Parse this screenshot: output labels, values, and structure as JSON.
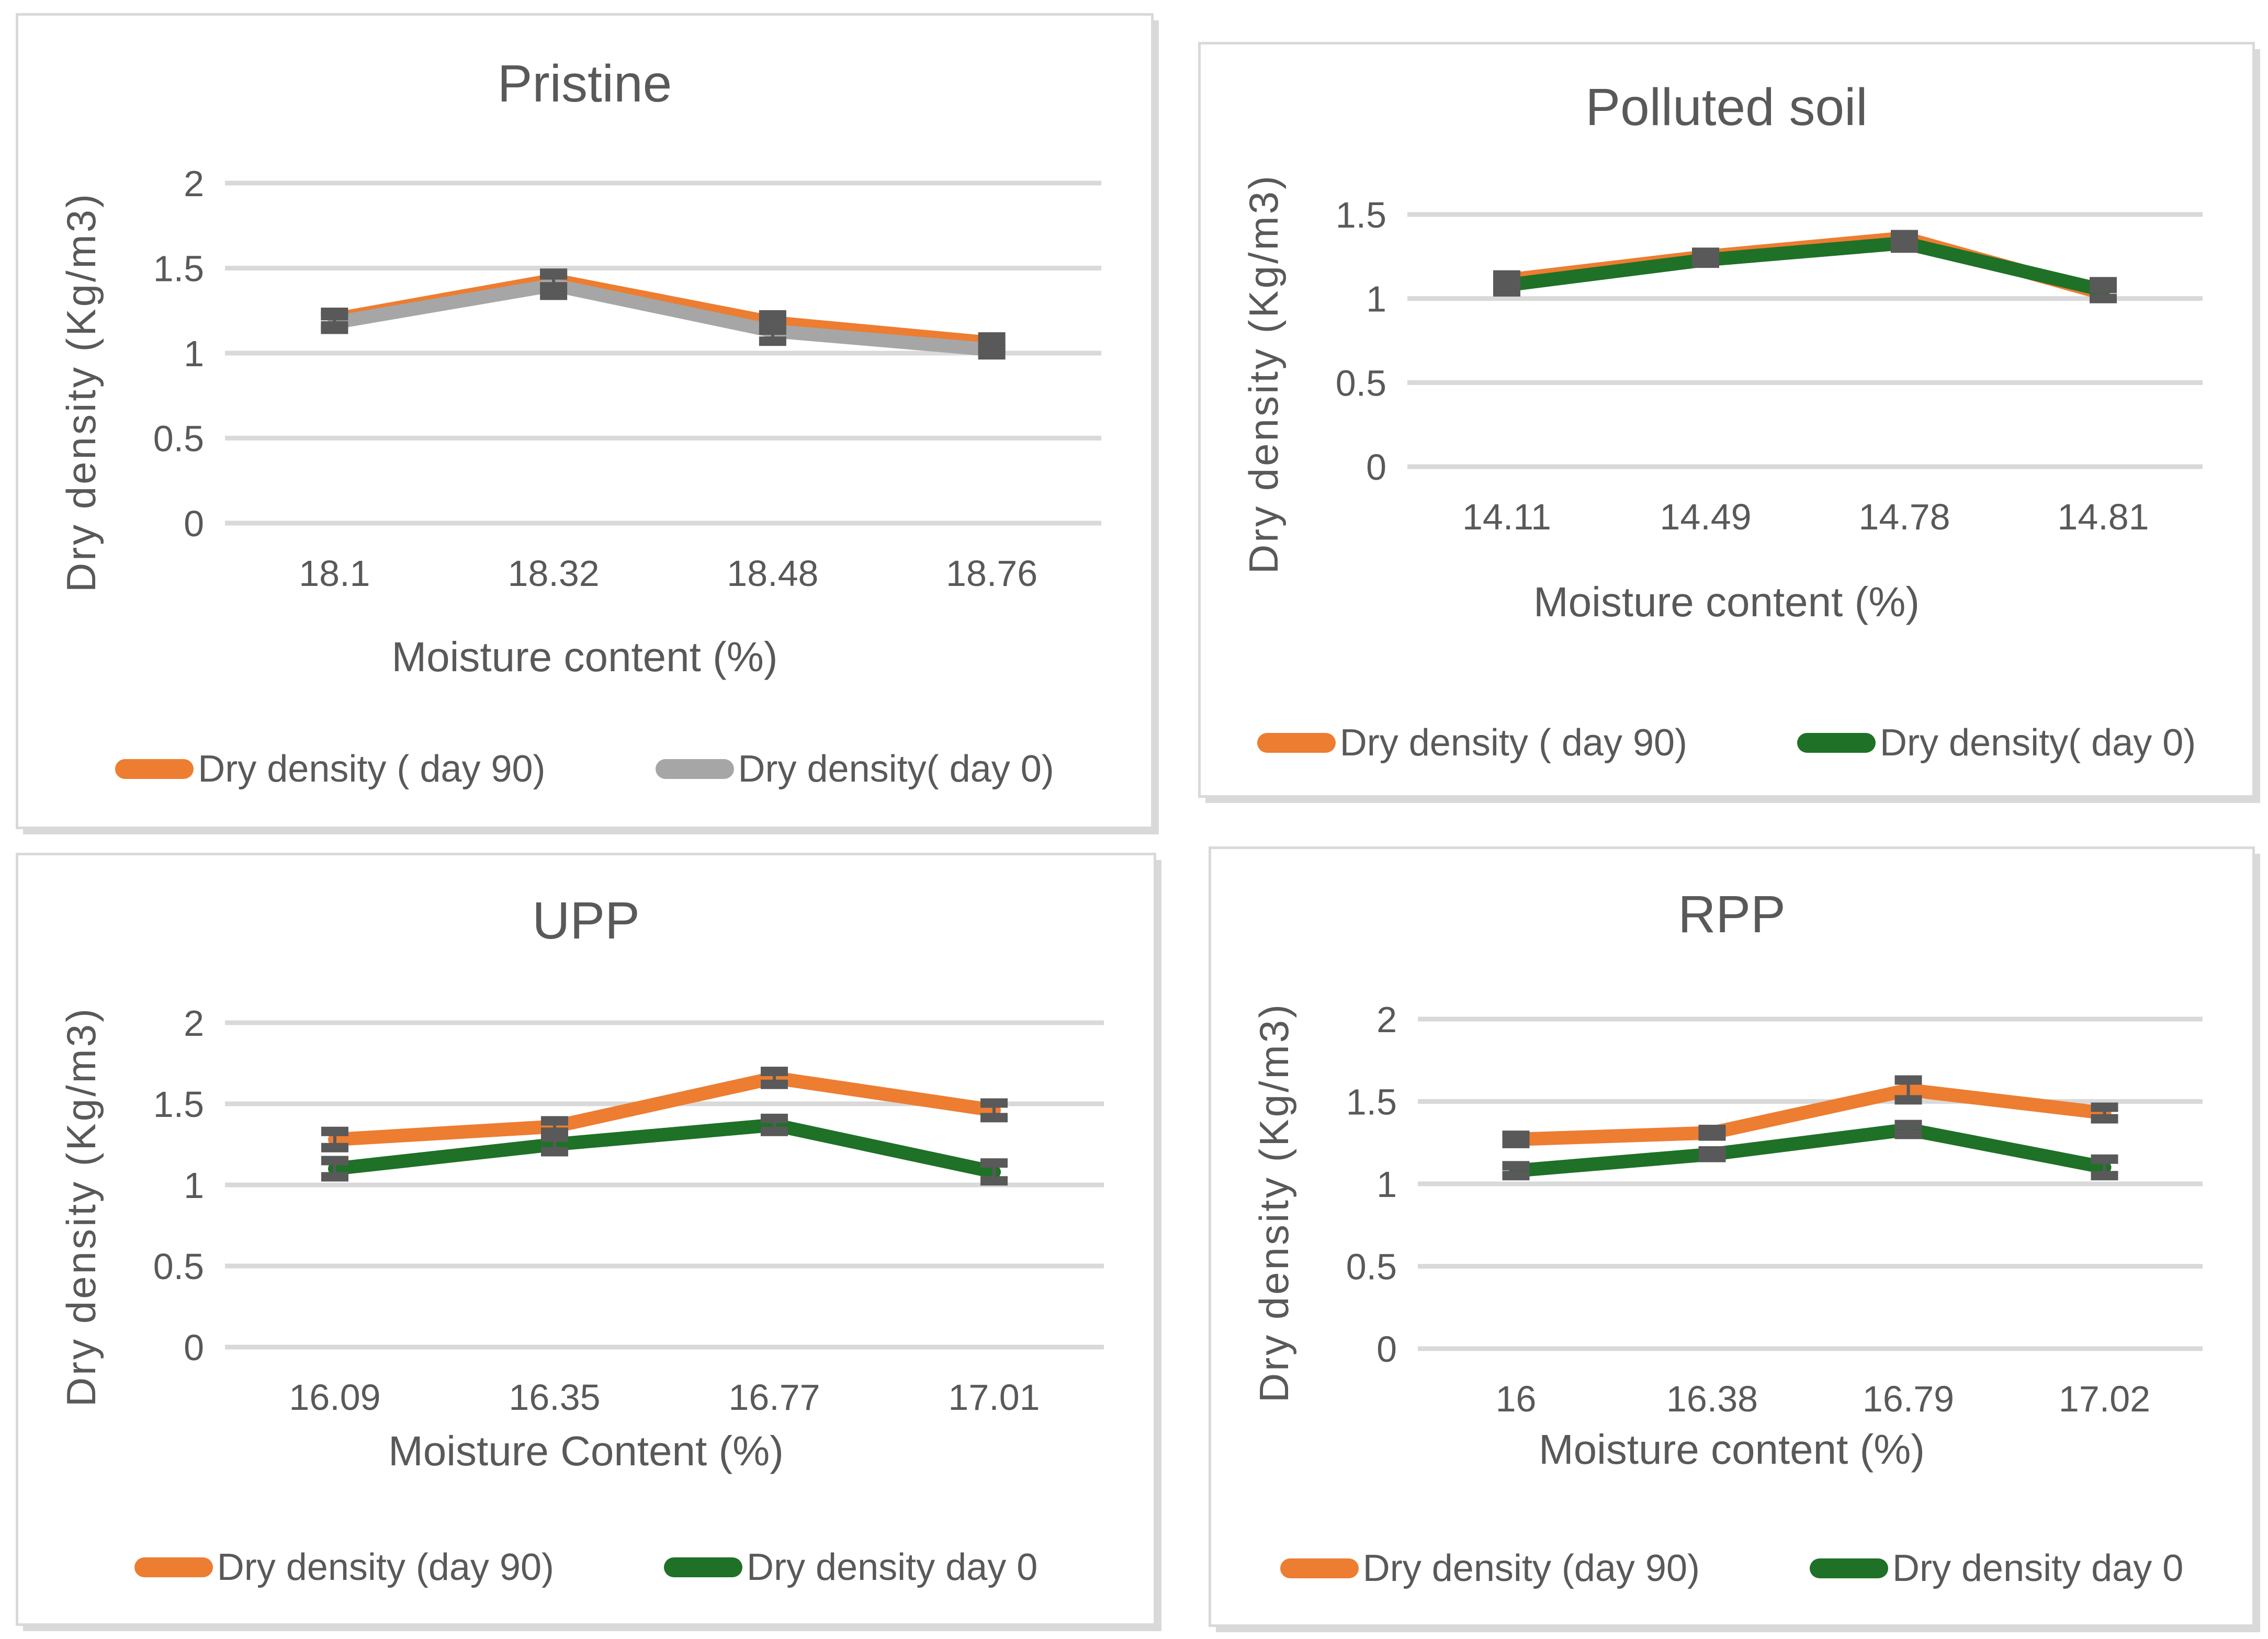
{
  "page": {
    "background": "#FFFFFF"
  },
  "colors": {
    "grid": "#D9D9D9",
    "text": "#595959",
    "error_bar": "#595959",
    "panel_border": "#D9D9D9",
    "orange": "#ED7D31",
    "gray": "#A6A6A6",
    "green": "#1E7126"
  },
  "chart_data": [
    {
      "id": "pristine",
      "type": "line",
      "title": "Pristine",
      "ylabel": "Dry density (Kg/m3)",
      "xlabel": "Moisture content (%)",
      "categories": [
        "18.1",
        "18.32",
        "18.48",
        "18.76"
      ],
      "ylim": [
        0,
        2
      ],
      "yticks": [
        0,
        0.5,
        1,
        1.5,
        2
      ],
      "grid": true,
      "legend_position": "bottom",
      "error_bars": true,
      "series": [
        {
          "name": "Dry density ( day 90)",
          "color": "#ED7D31",
          "values": [
            1.2,
            1.43,
            1.18,
            1.06
          ],
          "error": [
            0.04,
            0.04,
            0.045,
            0.035
          ]
        },
        {
          "name": "Dry density( day 0)",
          "color": "#A6A6A6",
          "values": [
            1.18,
            1.4,
            1.13,
            1.02
          ],
          "error": [
            0.04,
            0.06,
            0.06,
            0.03
          ]
        }
      ]
    },
    {
      "id": "polluted-soil",
      "type": "line",
      "title": "Polluted soil",
      "ylabel": "Dry density (Kg/m3)",
      "xlabel": "Moisture content (%)",
      "categories": [
        "14.11",
        "14.49",
        "14.78",
        "14.81"
      ],
      "ylim": [
        0,
        1.5
      ],
      "yticks": [
        0,
        0.5,
        1,
        1.5
      ],
      "grid": true,
      "legend_position": "bottom",
      "error_bars": true,
      "series": [
        {
          "name": "Dry density ( day 90)",
          "color": "#ED7D31",
          "values": [
            1.11,
            1.25,
            1.36,
            1.03
          ],
          "error": [
            0.03,
            0.025,
            0.02,
            0.03
          ]
        },
        {
          "name": "Dry density( day 0)",
          "color": "#1E7126",
          "values": [
            1.08,
            1.23,
            1.33,
            1.05
          ],
          "error": [
            0.04,
            0.02,
            0.03,
            0.05
          ]
        }
      ]
    },
    {
      "id": "upp",
      "type": "line",
      "title": "UPP",
      "ylabel": "Dry density (Kg/m3)",
      "xlabel": "Moisture Content (%)",
      "categories": [
        "16.09",
        "16.35",
        "16.77",
        "17.01"
      ],
      "ylim": [
        0,
        2
      ],
      "yticks": [
        0,
        0.5,
        1,
        1.5,
        2
      ],
      "grid": true,
      "legend_position": "bottom",
      "error_bars": true,
      "series": [
        {
          "name": "Dry density (day 90)",
          "color": "#ED7D31",
          "values": [
            1.28,
            1.36,
            1.66,
            1.46
          ],
          "error": [
            0.05,
            0.035,
            0.04,
            0.045
          ]
        },
        {
          "name": "Dry density day 0",
          "color": "#1E7126",
          "values": [
            1.1,
            1.25,
            1.37,
            1.08
          ],
          "error": [
            0.05,
            0.045,
            0.04,
            0.055
          ]
        }
      ]
    },
    {
      "id": "rpp",
      "type": "line",
      "title": "RPP",
      "ylabel": "Dry density (Kg/m3)",
      "xlabel": "Moisture content (%)",
      "categories": [
        "16",
        "16.38",
        "16.79",
        "17.02"
      ],
      "ylim": [
        0,
        2
      ],
      "yticks": [
        0,
        0.5,
        1,
        1.5,
        2
      ],
      "grid": true,
      "legend_position": "bottom",
      "error_bars": true,
      "series": [
        {
          "name": "Dry density (day 90)",
          "color": "#ED7D31",
          "values": [
            1.27,
            1.31,
            1.57,
            1.43
          ],
          "error": [
            0.025,
            0.02,
            0.06,
            0.035
          ]
        },
        {
          "name": "Dry density day 0",
          "color": "#1E7126",
          "values": [
            1.08,
            1.18,
            1.33,
            1.1
          ],
          "error": [
            0.03,
            0.02,
            0.03,
            0.05
          ]
        }
      ]
    }
  ]
}
